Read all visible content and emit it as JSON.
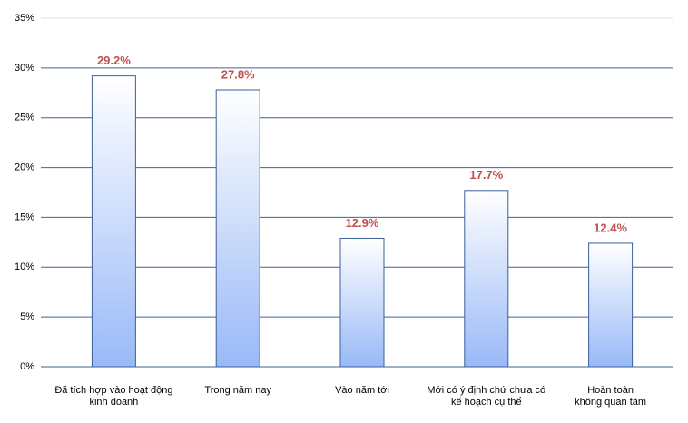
{
  "chart_data": {
    "type": "bar",
    "categories": [
      "Đã tích hợp vào hoạt động kinh doanh",
      "Trong năm nay",
      "Vào năm tới",
      "Mới có ý định chứ chưa có kế hoạch cụ thể",
      "Hoàn toàn không quan tâm"
    ],
    "values": [
      29.2,
      27.8,
      12.9,
      17.7,
      12.4
    ],
    "value_labels": [
      "29.2%",
      "27.8%",
      "12.9%",
      "17.7%",
      "12.4%"
    ],
    "color": "#99b9f7",
    "label_color": "#c0504d",
    "ylim": [
      0,
      35
    ],
    "yticks": [
      {
        "value": 0,
        "label": "0%"
      },
      {
        "value": 5,
        "label": "5%"
      },
      {
        "value": 10,
        "label": "10%"
      },
      {
        "value": 15,
        "label": "15%"
      },
      {
        "value": 20,
        "label": "20%"
      },
      {
        "value": 25,
        "label": "25%"
      },
      {
        "value": 30,
        "label": "30%"
      },
      {
        "value": 35,
        "label": "35%"
      }
    ],
    "grid": true
  }
}
